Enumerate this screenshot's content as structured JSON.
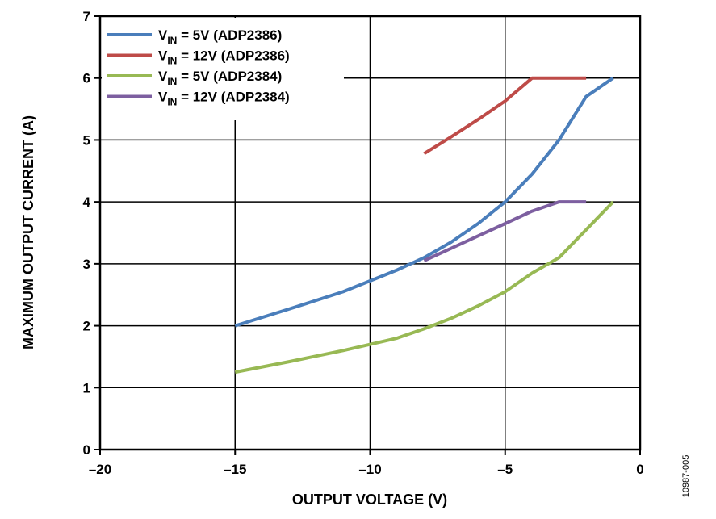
{
  "chart_data": {
    "type": "line",
    "xlabel": "OUTPUT VOLTAGE (V)",
    "ylabel": "MAXIMUM OUTPUT CURRENT (A)",
    "xlim": [
      -20,
      0
    ],
    "ylim": [
      0,
      7
    ],
    "x_ticks": [
      -20,
      -15,
      -10,
      -5,
      0
    ],
    "x_tick_labels": [
      "–20",
      "–15",
      "–10",
      "–5",
      "0"
    ],
    "y_ticks": [
      0,
      1,
      2,
      3,
      4,
      5,
      6,
      7
    ],
    "y_tick_labels": [
      "0",
      "1",
      "2",
      "3",
      "4",
      "5",
      "6",
      "7"
    ],
    "grid": true,
    "legend_position": "top-left",
    "figure_id": "10987-005",
    "series": [
      {
        "name_main": "V",
        "name_sub": "IN",
        "name_rest": " = 5V (ADP2386)",
        "color": "#4a7ebb",
        "x": [
          -15,
          -13,
          -11,
          -9,
          -8,
          -7,
          -6,
          -5,
          -4,
          -3,
          -2,
          -1
        ],
        "y": [
          2.0,
          2.27,
          2.55,
          2.9,
          3.1,
          3.35,
          3.65,
          4.0,
          4.45,
          5.0,
          5.7,
          6.0
        ]
      },
      {
        "name_main": "V",
        "name_sub": "IN",
        "name_rest": " = 12V (ADP2386)",
        "color": "#be4b48",
        "x": [
          -8,
          -7,
          -6,
          -5,
          -4,
          -3,
          -2
        ],
        "y": [
          4.78,
          5.05,
          5.33,
          5.63,
          6.0,
          6.0,
          6.0
        ]
      },
      {
        "name_main": "V",
        "name_sub": "IN",
        "name_rest": " = 5V (ADP2384)",
        "color": "#98b954",
        "x": [
          -15,
          -13,
          -11,
          -9,
          -8,
          -7,
          -6,
          -5,
          -4,
          -3,
          -2,
          -1
        ],
        "y": [
          1.25,
          1.42,
          1.6,
          1.8,
          1.95,
          2.12,
          2.32,
          2.55,
          2.85,
          3.1,
          3.55,
          4.0
        ]
      },
      {
        "name_main": "V",
        "name_sub": "IN",
        "name_rest": " = 12V (ADP2384)",
        "color": "#7d5fa0",
        "x": [
          -8,
          -7,
          -6,
          -5,
          -4,
          -3,
          -2
        ],
        "y": [
          3.05,
          3.25,
          3.45,
          3.65,
          3.85,
          4.0,
          4.0
        ]
      }
    ]
  }
}
